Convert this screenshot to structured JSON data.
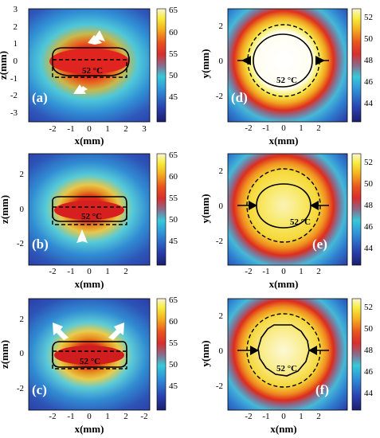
{
  "figure": {
    "contour_label": "52 °C",
    "left_colorbar_ticks": [
      "65",
      "60",
      "55",
      "50",
      "45"
    ],
    "right_colorbar_ticks": [
      "52",
      "50",
      "48",
      "46",
      "44"
    ],
    "panels": [
      {
        "id": "a",
        "label": "(a)",
        "xlabel": "x(mm)",
        "ylabel": "z(mm)",
        "xticks": [
          "-2",
          "-1",
          "0",
          "1",
          "2",
          "3"
        ],
        "yticks": [
          "3",
          "2",
          "1",
          "0",
          "-1",
          "-2",
          "-3"
        ],
        "colorbar": "left"
      },
      {
        "id": "b",
        "label": "(b)",
        "xlabel": "x(mm)",
        "ylabel": "z(mm)",
        "xticks": [
          "-2",
          "-1",
          "0",
          "1",
          "2"
        ],
        "yticks": [
          "2",
          "0",
          "-2"
        ],
        "colorbar": "left"
      },
      {
        "id": "c",
        "label": "(c)",
        "xlabel": "x(mm)",
        "ylabel": "z(mm)",
        "xticks": [
          "-2",
          "-1",
          "0",
          "1",
          "2",
          "-2"
        ],
        "yticks": [
          "2",
          "0",
          "-2"
        ],
        "colorbar": "left"
      },
      {
        "id": "d",
        "label": "(d)",
        "xlabel": "x(mm)",
        "ylabel": "y(mm)",
        "xticks": [
          "-2",
          "-1",
          "0",
          "1",
          "2"
        ],
        "yticks": [
          "2",
          "0",
          "-2"
        ],
        "colorbar": "right"
      },
      {
        "id": "e",
        "label": "(e)",
        "xlabel": "x(mm)",
        "ylabel": "y(mm)",
        "xticks": [
          "-2",
          "-1",
          "0",
          "1",
          "2"
        ],
        "yticks": [
          "2",
          "0",
          "-2"
        ],
        "colorbar": "right"
      },
      {
        "id": "f",
        "label": "(f)",
        "xlabel": "x(nm)",
        "ylabel": "y(nm)",
        "xticks": [
          "-2",
          "-1",
          "0",
          "1",
          "2"
        ],
        "yticks": [
          "2",
          "0",
          "-2"
        ],
        "colorbar": "right"
      }
    ],
    "colors": {
      "background_blue": "#2b3fa8",
      "hot_red": "#d81e1e",
      "peak_white": "#ffffff"
    }
  }
}
